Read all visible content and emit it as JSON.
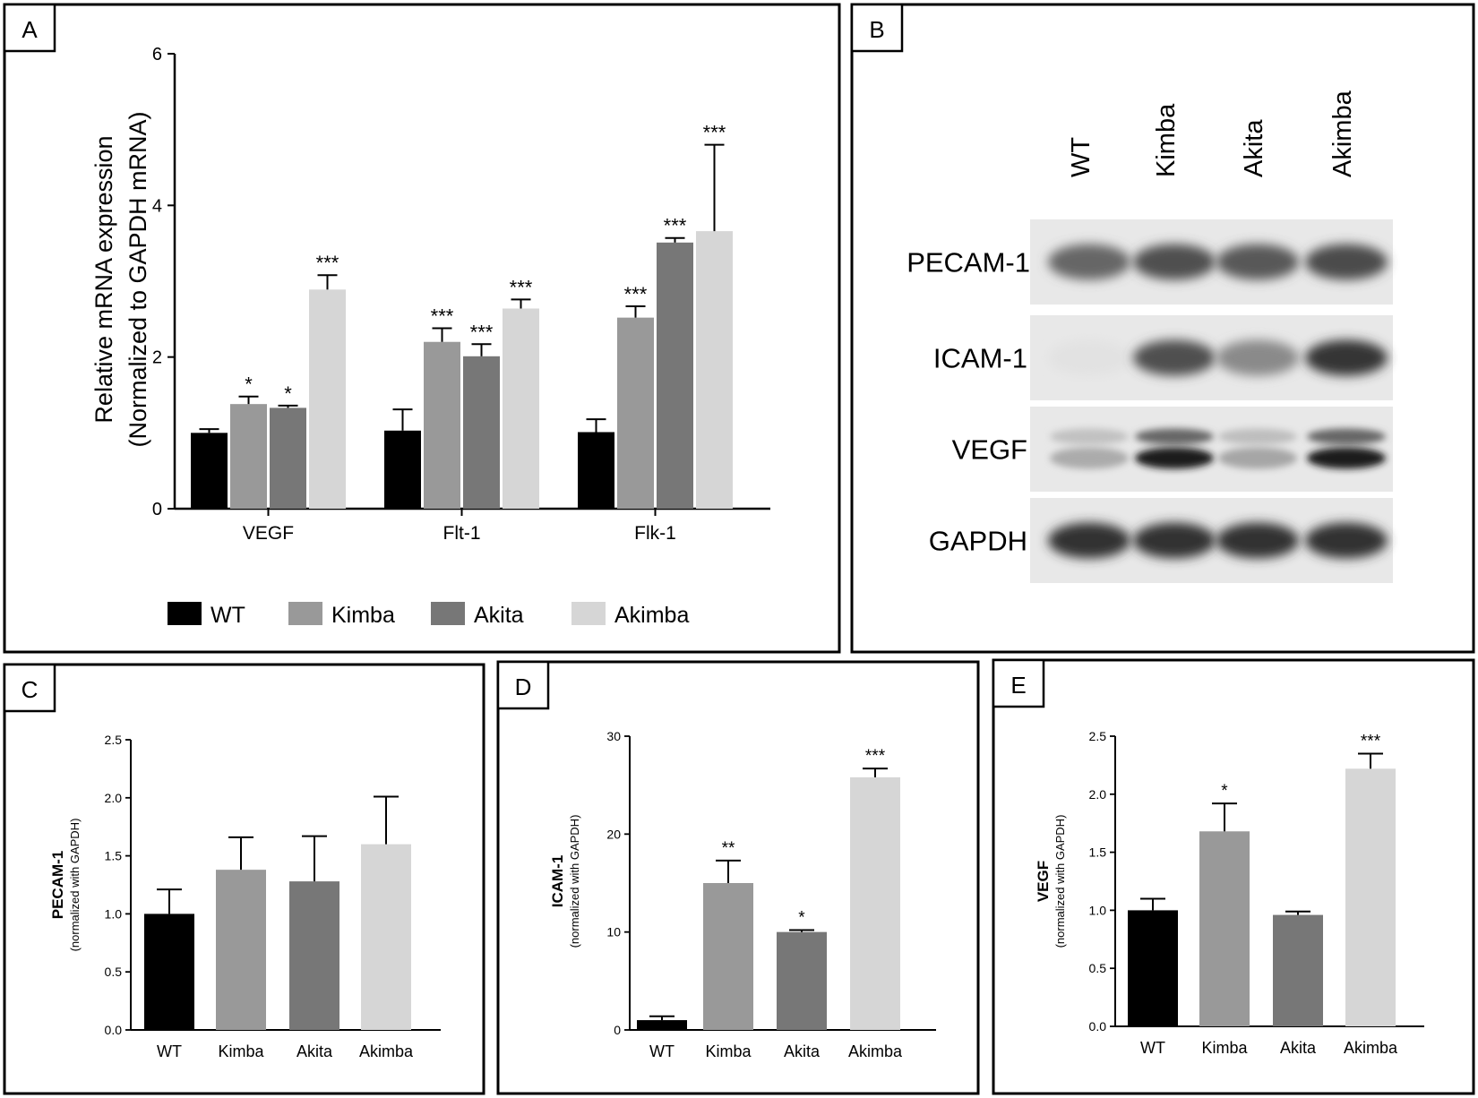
{
  "groups": [
    "WT",
    "Kimba",
    "Akita",
    "Akimba"
  ],
  "colors": {
    "WT": "#000000",
    "Kimba": "#999999",
    "Akita": "#777777",
    "Akimba": "#d6d6d6"
  },
  "chart_data": [
    {
      "panel": "A",
      "type": "bar",
      "ylabel_line1": "Relative mRNA expression",
      "ylabel_line2": "(Normalized to GAPDH mRNA)",
      "ylim": [
        0,
        6
      ],
      "yticks": [
        "0",
        "2",
        "4",
        "6"
      ],
      "categories": [
        "VEGF",
        "Flt-1",
        "Flk-1"
      ],
      "series": [
        {
          "name": "WT",
          "values": [
            1.0,
            1.03,
            1.01
          ],
          "errors": [
            0.05,
            0.28,
            0.17
          ],
          "sig": [
            "",
            "",
            ""
          ]
        },
        {
          "name": "Kimba",
          "values": [
            1.38,
            2.2,
            2.52
          ],
          "errors": [
            0.1,
            0.18,
            0.15
          ],
          "sig": [
            "*",
            "***",
            "***"
          ]
        },
        {
          "name": "Akita",
          "values": [
            1.33,
            2.01,
            3.51
          ],
          "errors": [
            0.03,
            0.16,
            0.06
          ],
          "sig": [
            "*",
            "***",
            "***"
          ]
        },
        {
          "name": "Akimba",
          "values": [
            2.89,
            2.64,
            3.66
          ],
          "errors": [
            0.19,
            0.12,
            1.14
          ],
          "sig": [
            "***",
            "***",
            "***"
          ]
        }
      ],
      "legend": [
        "WT",
        "Kimba",
        "Akita",
        "Akimba"
      ]
    },
    {
      "panel": "C",
      "type": "bar",
      "ylabel_bold": "PECAM-1",
      "ylabel_sub": "(normalized with GAPDH)",
      "ylim": [
        0,
        2.5
      ],
      "yticks": [
        "0.0",
        "0.5",
        "1.0",
        "1.5",
        "2.0",
        "2.5"
      ],
      "categories": [
        "WT",
        "Kimba",
        "Akita",
        "Akimba"
      ],
      "values": [
        1.0,
        1.38,
        1.28,
        1.6
      ],
      "errors": [
        0.21,
        0.28,
        0.39,
        0.41
      ],
      "sig": [
        "",
        "",
        "",
        ""
      ]
    },
    {
      "panel": "D",
      "type": "bar",
      "ylabel_bold": "ICAM-1",
      "ylabel_sub": "(normalized with GAPDH)",
      "ylim": [
        0,
        30
      ],
      "yticks": [
        "0",
        "10",
        "20",
        "30"
      ],
      "categories": [
        "WT",
        "Kimba",
        "Akita",
        "Akimba"
      ],
      "values": [
        1.0,
        15.0,
        10.0,
        25.8
      ],
      "errors": [
        0.4,
        2.3,
        0.2,
        0.9
      ],
      "sig": [
        "",
        "**",
        "*",
        "***"
      ]
    },
    {
      "panel": "E",
      "type": "bar",
      "ylabel_bold": "VEGF",
      "ylabel_sub": "(normalized with GAPDH)",
      "ylim": [
        0,
        2.5
      ],
      "yticks": [
        "0.0",
        "0.5",
        "1.0",
        "1.5",
        "2.0",
        "2.5"
      ],
      "categories": [
        "WT",
        "Kimba",
        "Akita",
        "Akimba"
      ],
      "values": [
        1.0,
        1.68,
        0.96,
        2.22
      ],
      "errors": [
        0.1,
        0.24,
        0.03,
        0.13
      ],
      "sig": [
        "",
        "*",
        "",
        "***"
      ]
    }
  ],
  "blot": {
    "panel": "B",
    "lanes": [
      "WT",
      "Kimba",
      "Akita",
      "Akimba"
    ],
    "rows": [
      {
        "label": "PECAM-1",
        "intensity": [
          0.62,
          0.72,
          0.68,
          0.74
        ],
        "double": false
      },
      {
        "label": "ICAM-1",
        "intensity": [
          0.04,
          0.72,
          0.45,
          0.85
        ],
        "double": false
      },
      {
        "label": "VEGF",
        "intensity": [
          0.3,
          0.95,
          0.32,
          0.95
        ],
        "double": true
      },
      {
        "label": "GAPDH",
        "intensity": [
          0.86,
          0.86,
          0.86,
          0.86
        ],
        "double": false
      }
    ]
  },
  "panel_letters": [
    "A",
    "B",
    "C",
    "D",
    "E"
  ]
}
